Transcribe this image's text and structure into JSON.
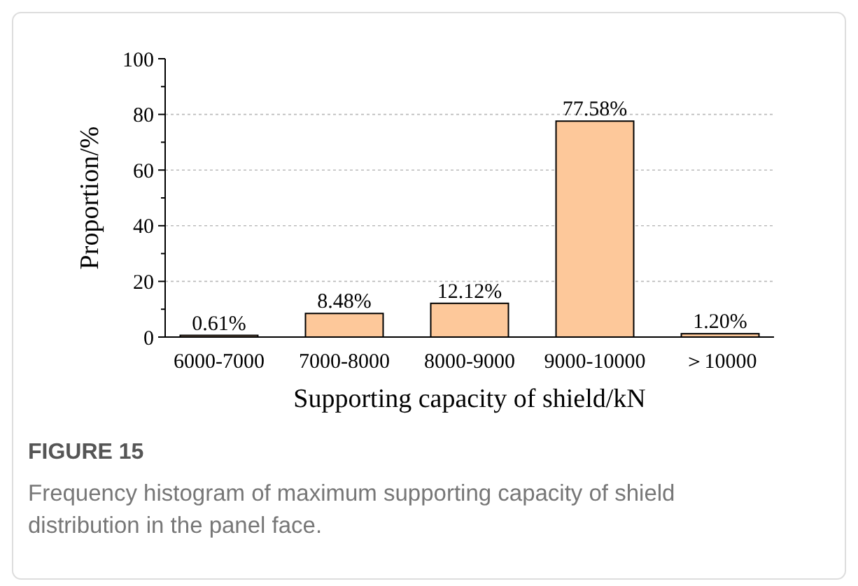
{
  "chart_data": {
    "type": "bar",
    "xlabel": "Supporting capacity of shield/kN",
    "ylabel": "Proportion/%",
    "categories": [
      "6000-7000",
      "7000-8000",
      "8000-9000",
      "9000-10000",
      "＞10000"
    ],
    "values": [
      0.61,
      8.48,
      12.12,
      77.58,
      1.2
    ],
    "value_labels": [
      "0.61%",
      "8.48%",
      "12.12%",
      "77.58%",
      "1.20%"
    ],
    "color": "#fdc89a",
    "ylim": [
      0,
      100
    ],
    "yticks": [
      0,
      {
        "value": 10,
        "label": null
      },
      20,
      {
        "value": 30,
        "label": null
      },
      40,
      {
        "value": 50,
        "label": null
      },
      60,
      {
        "value": 70,
        "label": null
      },
      80,
      {
        "value": 90,
        "label": null
      },
      100
    ],
    "grid": "y",
    "annotations": [
      "FIGURE 15",
      "Frequency histogram of maximum supporting capacity of shield distribution in the panel face."
    ]
  }
}
